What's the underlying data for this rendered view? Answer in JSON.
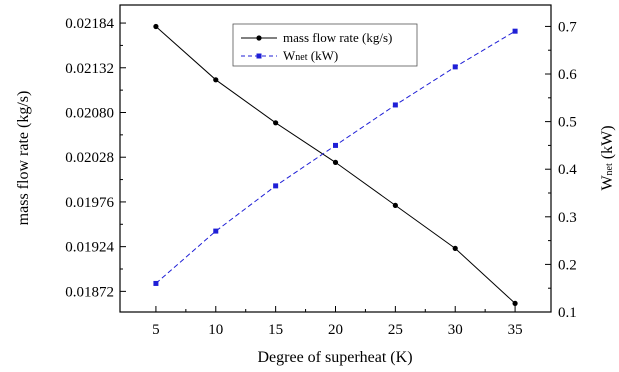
{
  "chart_data": {
    "type": "line",
    "xlabel": "Degree of superheat (K)",
    "ylabel_left": "mass flow rate (kg/s)",
    "ylabel_right_main": "W",
    "ylabel_right_sub": "net",
    "ylabel_right_unit": " (kW)",
    "x": [
      5,
      10,
      15,
      20,
      25,
      30,
      35
    ],
    "x_ticks": [
      5,
      10,
      15,
      20,
      25,
      30,
      35
    ],
    "xlim": [
      2,
      38
    ],
    "y_left_ticks": [
      "0.01872",
      "0.01924",
      "0.01976",
      "0.02028",
      "0.02080",
      "0.02132",
      "0.02184"
    ],
    "y_left_lim": [
      0.01848,
      0.02205
    ],
    "y_right_ticks": [
      "0.1",
      "0.2",
      "0.3",
      "0.4",
      "0.5",
      "0.6",
      "0.7"
    ],
    "y_right_lim": [
      0.1,
      0.745
    ],
    "series": [
      {
        "name": "mass flow rate (kg/s)",
        "axis": "left",
        "color": "#000000",
        "marker": "circle",
        "line_style": "solid",
        "values": [
          0.0218,
          0.02118,
          0.02068,
          0.02022,
          0.01972,
          0.01922,
          0.01858
        ]
      },
      {
        "name_main": "W",
        "name_sub": "net",
        "name_unit": " (kW)",
        "axis": "right",
        "color": "#1f1fd6",
        "marker": "square",
        "line_style": "dashed",
        "values": [
          0.16,
          0.27,
          0.365,
          0.45,
          0.535,
          0.615,
          0.69
        ]
      }
    ],
    "legend": "top-center",
    "grid": false
  }
}
